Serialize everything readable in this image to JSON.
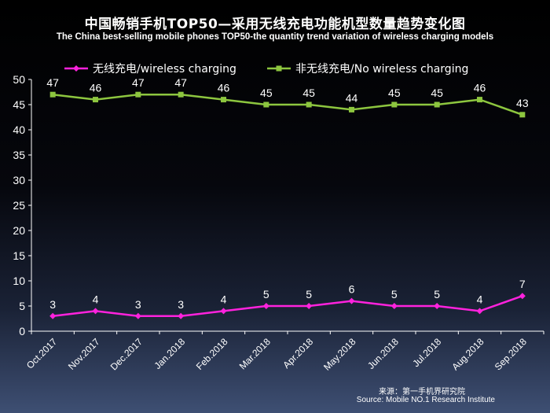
{
  "chart_data": {
    "type": "line",
    "title": "中国畅销手机TOP50—采用无线充电功能机型数量趋势变化图",
    "subtitle": "The China best-selling mobile phones TOP50-the quantity trend variation of wireless charging models",
    "categories": [
      "Oct.2017",
      "Nov.2017",
      "Dec.2017",
      "Jan.2018",
      "Feb.2018",
      "Mar.2018",
      "Apr.2018",
      "May.2018",
      "Jun.2018",
      "Jul.2018",
      "Aug.2018",
      "Sep.2018"
    ],
    "series": [
      {
        "name": "无线充电/wireless charging",
        "color": "#ff22dd",
        "marker": "diamond",
        "values": [
          3,
          4,
          3,
          3,
          4,
          5,
          5,
          6,
          5,
          5,
          4,
          7
        ]
      },
      {
        "name": "非无线充电/No wireless charging",
        "color": "#8dc63f",
        "marker": "square",
        "values": [
          47,
          46,
          47,
          47,
          46,
          45,
          45,
          44,
          45,
          45,
          46,
          43
        ]
      }
    ],
    "ylim": [
      0,
      50
    ],
    "yticks": [
      0,
      5,
      10,
      15,
      20,
      25,
      30,
      35,
      40,
      45,
      50
    ],
    "legend": "top",
    "grid": false
  },
  "source": {
    "line1": "来源：第一手机界研究院",
    "line2": "Source: Mobile NO.1 Research Institute"
  }
}
